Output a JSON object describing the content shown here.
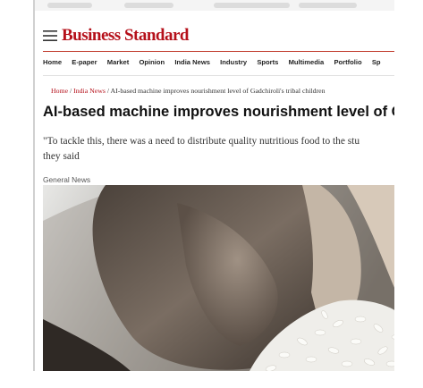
{
  "header": {
    "logo": "Business Standard"
  },
  "nav": [
    "Home",
    "E-paper",
    "Market",
    "Opinion",
    "India News",
    "Industry",
    "Sports",
    "Multimedia",
    "Portfolio",
    "Sp"
  ],
  "breadcrumb": {
    "home": "Home",
    "section": "India News",
    "current": "/ AI-based machine improves nourishment level of Gadchiroli's tribal children"
  },
  "article": {
    "headline": "AI-based machine improves nourishment level of Gad",
    "summary": [
      "\"To tackle this, there was a need to distribute quality nutritious food to the stu",
      "they said"
    ],
    "tag": "General News"
  }
}
